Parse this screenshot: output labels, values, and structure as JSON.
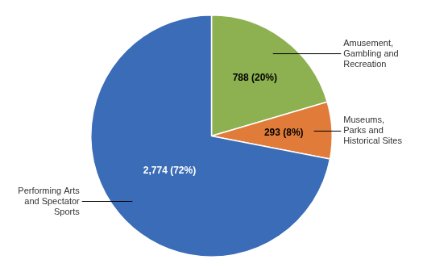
{
  "chart_data": {
    "type": "pie",
    "categories": [
      "Amusement,\nGambling and\nRecreation",
      "Museums,\nParks and\nHistorical Sites",
      "Performing Arts\nand Spectator\nSports"
    ],
    "values": [
      788,
      293,
      2774
    ],
    "value_labels": [
      "788 (20%)",
      "293 (8%)",
      "2,774 (72%)"
    ],
    "colors": [
      "#8DB050",
      "#E07B39",
      "#3B6CB7"
    ],
    "data_labels": true
  }
}
